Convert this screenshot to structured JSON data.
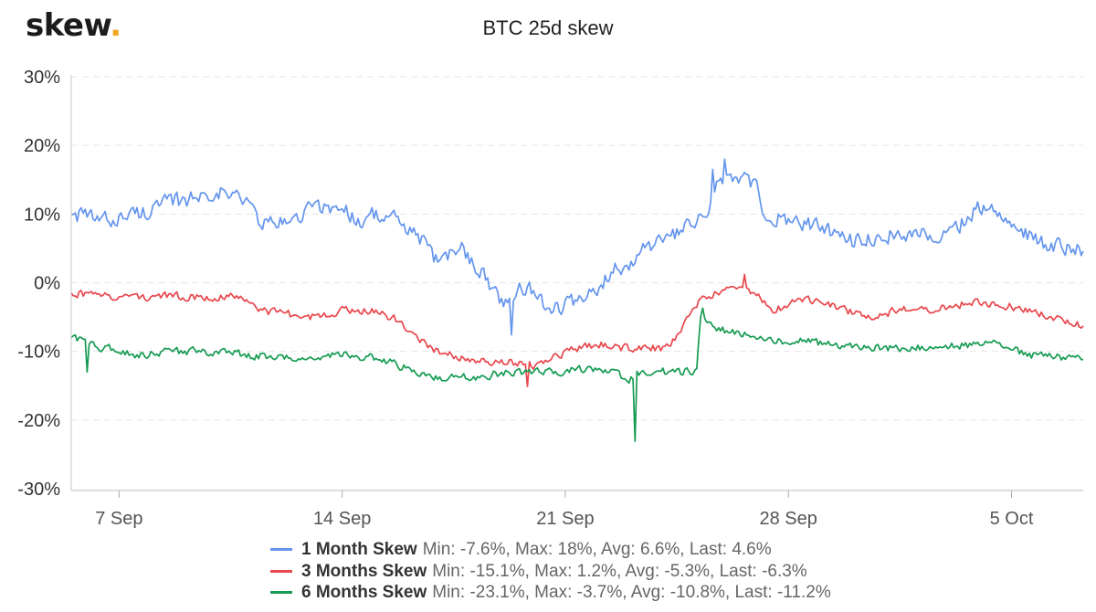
{
  "logo": {
    "text": "skew",
    "dot": "."
  },
  "chart_data": {
    "type": "line",
    "title": "BTC 25d skew",
    "xlabel": "",
    "ylabel": "",
    "xlim": [
      "2020-09-05T12:00",
      "2020-10-07T06:00"
    ],
    "ylim": [
      -30,
      30
    ],
    "y_ticks": [
      "30%",
      "20%",
      "10%",
      "0%",
      "-10%",
      "-20%",
      "-30%"
    ],
    "y_tick_values": [
      30,
      20,
      10,
      0,
      -10,
      -20,
      -30
    ],
    "x_ticks": [
      "7 Sep",
      "14 Sep",
      "21 Sep",
      "28 Sep",
      "5 Oct"
    ],
    "x_tick_dates": [
      "2020-09-07",
      "2020-09-14",
      "2020-09-21",
      "2020-09-28",
      "2020-10-05"
    ],
    "grid": true,
    "legend_position": "bottom",
    "series": [
      {
        "name": "1 Month Skew",
        "stats": "Min: -7.6%, Max: 18%, Avg: 6.6%, Last: 4.6%",
        "color": "#6495ed",
        "noise": 1.1,
        "points": [
          [
            "2020-09-05T12:00",
            10
          ],
          [
            "2020-09-06T12:00",
            9
          ],
          [
            "2020-09-07T12:00",
            10
          ],
          [
            "2020-09-08T12:00",
            11.5
          ],
          [
            "2020-09-09T12:00",
            12.5
          ],
          [
            "2020-09-10T00:00",
            13.5
          ],
          [
            "2020-09-11T00:00",
            12
          ],
          [
            "2020-09-11T12:00",
            8.5
          ],
          [
            "2020-09-12T12:00",
            9
          ],
          [
            "2020-09-13T00:00",
            11
          ],
          [
            "2020-09-14T00:00",
            11
          ],
          [
            "2020-09-14T12:00",
            9
          ],
          [
            "2020-09-15T00:00",
            10
          ],
          [
            "2020-09-15T18:00",
            9
          ],
          [
            "2020-09-16T12:00",
            6
          ],
          [
            "2020-09-17T00:00",
            3
          ],
          [
            "2020-09-17T18:00",
            5
          ],
          [
            "2020-09-18T12:00",
            1
          ],
          [
            "2020-09-19T00:00",
            -3
          ],
          [
            "2020-09-19T12:00",
            -1
          ],
          [
            "2020-09-20T00:00",
            -1
          ],
          [
            "2020-09-20T12:00",
            -4
          ],
          [
            "2020-09-21T00:00",
            -3
          ],
          [
            "2020-09-21T12:00",
            -3
          ],
          [
            "2020-09-22T00:00",
            -1
          ],
          [
            "2020-09-22T12:00",
            2
          ],
          [
            "2020-09-23T00:00",
            3
          ],
          [
            "2020-09-23T12:00",
            5
          ],
          [
            "2020-09-24T00:00",
            6
          ],
          [
            "2020-09-24T12:00",
            7
          ],
          [
            "2020-09-25T06:00",
            9
          ],
          [
            "2020-09-25T12:00",
            11
          ],
          [
            "2020-09-25T18:00",
            14.5
          ],
          [
            "2020-09-26T12:00",
            15
          ],
          [
            "2020-09-27T00:00",
            14
          ],
          [
            "2020-09-27T06:00",
            10
          ],
          [
            "2020-09-28T00:00",
            9
          ],
          [
            "2020-09-29T00:00",
            8
          ],
          [
            "2020-09-30T00:00",
            6
          ],
          [
            "2020-10-01T00:00",
            7
          ],
          [
            "2020-10-02T00:00",
            7
          ],
          [
            "2020-10-03T00:00",
            7
          ],
          [
            "2020-10-04T00:00",
            11
          ],
          [
            "2020-10-04T18:00",
            10
          ],
          [
            "2020-10-05T12:00",
            7
          ],
          [
            "2020-10-06T00:00",
            5.5
          ],
          [
            "2020-10-07T06:00",
            4.6
          ]
        ],
        "spikes": [
          [
            "2020-09-26T00:00",
            18
          ],
          [
            "2020-09-19T08:00",
            -7.6
          ],
          [
            "2020-09-25T15:00",
            16.5
          ]
        ]
      },
      {
        "name": "3 Months Skew",
        "stats": "Min: -15.1%, Max: 1.2%, Avg: -5.3%, Last: -6.3%",
        "color": "#e8474c",
        "noise": 0.55,
        "points": [
          [
            "2020-09-05T12:00",
            -1.5
          ],
          [
            "2020-09-06T12:00",
            -2
          ],
          [
            "2020-09-08T00:00",
            -2
          ],
          [
            "2020-09-10T00:00",
            -2
          ],
          [
            "2020-09-11T00:00",
            -2.2
          ],
          [
            "2020-09-11T12:00",
            -4
          ],
          [
            "2020-09-13T00:00",
            -5
          ],
          [
            "2020-09-14T00:00",
            -4
          ],
          [
            "2020-09-15T00:00",
            -4
          ],
          [
            "2020-09-15T18:00",
            -5.5
          ],
          [
            "2020-09-16T06:00",
            -8
          ],
          [
            "2020-09-17T00:00",
            -10
          ],
          [
            "2020-09-18T00:00",
            -11
          ],
          [
            "2020-09-19T00:00",
            -11.5
          ],
          [
            "2020-09-20T00:00",
            -12
          ],
          [
            "2020-09-21T00:00",
            -10
          ],
          [
            "2020-09-22T00:00",
            -9
          ],
          [
            "2020-09-23T00:00",
            -9.5
          ],
          [
            "2020-09-24T00:00",
            -9.5
          ],
          [
            "2020-09-24T12:00",
            -8
          ],
          [
            "2020-09-25T06:00",
            -2.5
          ],
          [
            "2020-09-26T00:00",
            -1
          ],
          [
            "2020-09-26T12:00",
            -0.5
          ],
          [
            "2020-09-27T00:00",
            -2
          ],
          [
            "2020-09-27T12:00",
            -4
          ],
          [
            "2020-09-28T12:00",
            -2.5
          ],
          [
            "2020-09-29T12:00",
            -3.5
          ],
          [
            "2020-09-30T12:00",
            -5
          ],
          [
            "2020-10-01T12:00",
            -4
          ],
          [
            "2020-10-02T12:00",
            -4
          ],
          [
            "2020-10-03T12:00",
            -3
          ],
          [
            "2020-10-04T12:00",
            -3
          ],
          [
            "2020-10-05T12:00",
            -4
          ],
          [
            "2020-10-06T12:00",
            -5.5
          ],
          [
            "2020-10-07T06:00",
            -6.3
          ]
        ],
        "spikes": [
          [
            "2020-09-26T15:00",
            1.2
          ],
          [
            "2020-09-19T20:00",
            -15.1
          ]
        ]
      },
      {
        "name": "6 Months Skew",
        "stats": "Min: -23.1%, Max: -3.7%, Avg: -10.8%, Last: -11.2%",
        "color": "#169b52",
        "noise": 0.55,
        "points": [
          [
            "2020-09-05T12:00",
            -8
          ],
          [
            "2020-09-06T12:00",
            -9.5
          ],
          [
            "2020-09-07T12:00",
            -10.5
          ],
          [
            "2020-09-09T00:00",
            -10
          ],
          [
            "2020-09-10T00:00",
            -10
          ],
          [
            "2020-09-11T00:00",
            -10.5
          ],
          [
            "2020-09-12T00:00",
            -11
          ],
          [
            "2020-09-13T00:00",
            -11
          ],
          [
            "2020-09-14T00:00",
            -10.5
          ],
          [
            "2020-09-15T00:00",
            -11
          ],
          [
            "2020-09-15T18:00",
            -12
          ],
          [
            "2020-09-16T12:00",
            -13.5
          ],
          [
            "2020-09-17T12:00",
            -14
          ],
          [
            "2020-09-18T12:00",
            -13.5
          ],
          [
            "2020-09-19T12:00",
            -13
          ],
          [
            "2020-09-20T12:00",
            -13
          ],
          [
            "2020-09-21T12:00",
            -12.5
          ],
          [
            "2020-09-22T12:00",
            -13
          ],
          [
            "2020-09-23T00:00",
            -14
          ],
          [
            "2020-09-23T12:00",
            -13
          ],
          [
            "2020-09-24T12:00",
            -13
          ],
          [
            "2020-09-25T03:00",
            -13
          ],
          [
            "2020-09-25T06:00",
            -5
          ],
          [
            "2020-09-25T12:00",
            -6
          ],
          [
            "2020-09-26T00:00",
            -7
          ],
          [
            "2020-09-27T00:00",
            -8
          ],
          [
            "2020-09-27T12:00",
            -8.5
          ],
          [
            "2020-09-28T12:00",
            -8.5
          ],
          [
            "2020-09-29T12:00",
            -9
          ],
          [
            "2020-09-30T12:00",
            -9.5
          ],
          [
            "2020-10-01T12:00",
            -9.5
          ],
          [
            "2020-10-02T12:00",
            -9.5
          ],
          [
            "2020-10-03T12:00",
            -9
          ],
          [
            "2020-10-04T12:00",
            -9
          ],
          [
            "2020-10-05T12:00",
            -10.5
          ],
          [
            "2020-10-06T12:00",
            -11
          ],
          [
            "2020-10-07T06:00",
            -11.2
          ]
        ],
        "spikes": [
          [
            "2020-09-23T05:00",
            -23.1
          ],
          [
            "2020-09-25T08:00",
            -3.7
          ],
          [
            "2020-09-06T00:00",
            -13
          ]
        ]
      }
    ]
  }
}
